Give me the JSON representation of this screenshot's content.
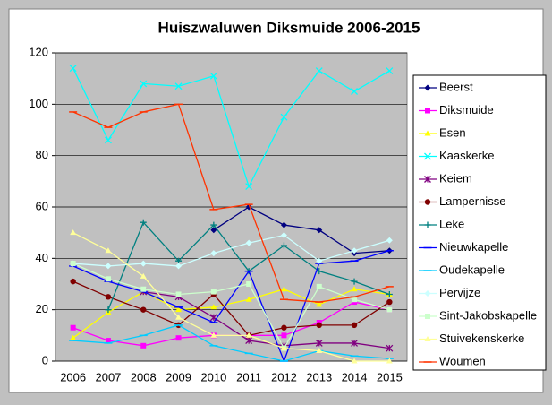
{
  "chart_data": {
    "type": "line",
    "title": "Huiszwaluwen Diksmuide 2006-2015",
    "categories": [
      "2006",
      "2007",
      "2008",
      "2009",
      "2010",
      "2011",
      "2012",
      "2013",
      "2014",
      "2015"
    ],
    "ylim": [
      0,
      120
    ],
    "yticks": [
      0,
      20,
      40,
      60,
      80,
      100,
      120
    ],
    "grid": true,
    "legend": "right",
    "series": [
      {
        "name": "Beerst",
        "color": "#000080",
        "marker": "diamond",
        "values": [
          null,
          null,
          null,
          null,
          51,
          60,
          53,
          51,
          42,
          43
        ]
      },
      {
        "name": "Diksmuide",
        "color": "#ff00ff",
        "marker": "square",
        "values": [
          13,
          8,
          6,
          9,
          10,
          10,
          10,
          15,
          23,
          20
        ]
      },
      {
        "name": "Esen",
        "color": "#ffff00",
        "marker": "triangle",
        "values": [
          9,
          19,
          27,
          20,
          21,
          24,
          28,
          22,
          28,
          26
        ]
      },
      {
        "name": "Kaaskerke",
        "color": "#00ffff",
        "marker": "x",
        "values": [
          114,
          86,
          108,
          107,
          111,
          68,
          95,
          113,
          105,
          113
        ]
      },
      {
        "name": "Keiem",
        "color": "#800080",
        "marker": "star",
        "values": [
          null,
          null,
          27,
          25,
          17,
          8,
          6,
          7,
          7,
          5
        ]
      },
      {
        "name": "Lampernisse",
        "color": "#800000",
        "marker": "circle",
        "values": [
          31,
          25,
          20,
          14,
          26,
          10,
          13,
          14,
          14,
          23
        ]
      },
      {
        "name": "Leke",
        "color": "#008080",
        "marker": "plus",
        "values": [
          null,
          20,
          54,
          39,
          53,
          35,
          45,
          35,
          31,
          26
        ]
      },
      {
        "name": "Nieuwkapelle",
        "color": "#0000ff",
        "marker": "dash",
        "values": [
          37,
          31,
          27,
          21,
          15,
          35,
          0,
          38,
          39,
          43
        ]
      },
      {
        "name": "Oudekapelle",
        "color": "#00ccff",
        "marker": "dash",
        "values": [
          8,
          7,
          10,
          14,
          6,
          3,
          0,
          4,
          2,
          1
        ]
      },
      {
        "name": "Pervijze",
        "color": "#ccffff",
        "marker": "diamond",
        "values": [
          38,
          37,
          38,
          37,
          42,
          46,
          49,
          39,
          43,
          47
        ]
      },
      {
        "name": "Sint-Jakobskapelle",
        "color": "#ccffcc",
        "marker": "square",
        "values": [
          38,
          32,
          28,
          26,
          27,
          30,
          5,
          29,
          24,
          20
        ]
      },
      {
        "name": "Stuivekenskerke",
        "color": "#ffff99",
        "marker": "triangle",
        "values": [
          50,
          43,
          33,
          17,
          10,
          10,
          5,
          4,
          0,
          0
        ]
      },
      {
        "name": "Woumen",
        "color": "#ff3300",
        "marker": "dash",
        "values": [
          97,
          91,
          97,
          100,
          59,
          61,
          24,
          23,
          25,
          29
        ]
      }
    ]
  }
}
